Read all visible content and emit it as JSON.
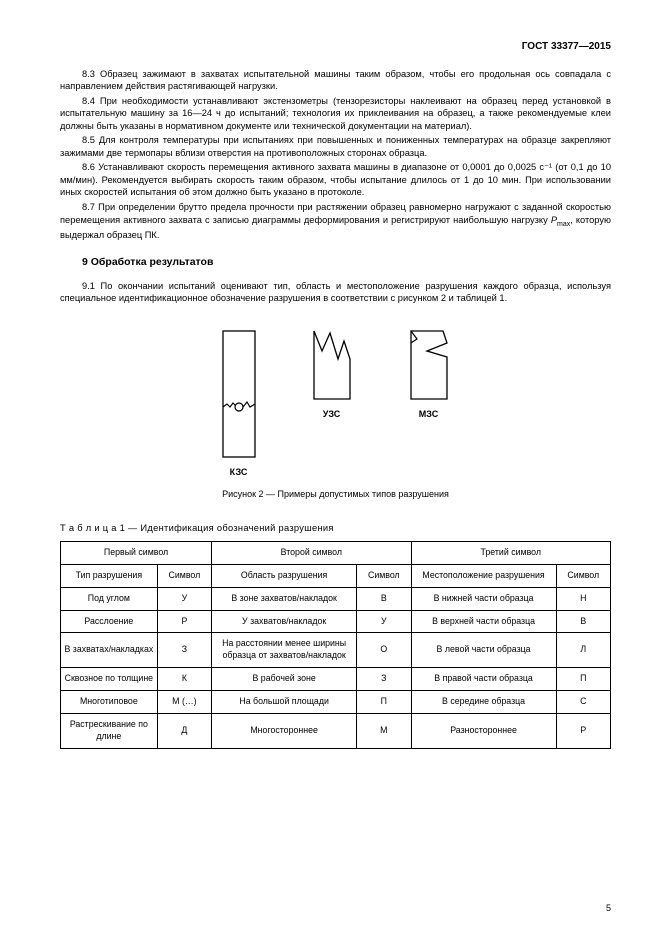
{
  "header": "ГОСТ 33377—2015",
  "paragraphs": [
    "8.3 Образец зажимают в захватах испытательной машины таким образом, чтобы его продольная ось совпадала с направлением действия растягивающей нагрузки.",
    "8.4 При необходимости устанавливают экстензометры (тензорезисторы наклеивают на образец перед установкой в испытательную машину за 16—24 ч до испытаний; технология их приклеивания на образец, а также рекомендуемые клеи должны быть указаны в нормативном документе или технической документации на материал).",
    "8.5 Для контроля температуры при испытаниях при повышенных и пониженных температурах на образце закрепляют зажимами две термопары вблизи отверстия на противоположных сторонах образца.",
    "8.6 Устанавливают скорость перемещения активного захвата машины в диапазоне от 0,0001 до 0,0025 с⁻¹ (от 0,1 до 10 мм/мин). Рекомендуется выбирать скорость таким образом, чтобы испытание длилось от 1 до 10 мин. При использовании иных скоростей испытания об этом должно быть указано в протоколе."
  ],
  "para_87_pre": "8.7 При определении брутто предела прочности при растяжении образец равномерно нагружают с заданной скоростью перемещения активного захвата с записью диаграммы деформирования и регистрируют наибольшую нагрузку ",
  "para_87_sym": "P",
  "para_87_sub": "max",
  "para_87_post": ", которую выдержал образец ПК.",
  "section9": "9  Обработка результатов",
  "para91": "9.1 По окончании испытаний оценивают тип, область и местоположение разрушения каждого образца, используя специальное идентификационное обозначение разрушения в соответствии с рисунком 2 и таблицей 1.",
  "figure": {
    "labels": [
      "КЗС",
      "УЗС",
      "МЗС"
    ],
    "caption": "Рисунок 2 — Примеры допустимых типов разрушения",
    "stroke": "#000000",
    "fill_bg": "#ffffff"
  },
  "table": {
    "caption": "Т а б л и ц а  1 — Идентификация обозначений разрушения",
    "group_headers": [
      "Первый символ",
      "Второй символ",
      "Третий символ"
    ],
    "sub_headers": [
      "Тип разрушения",
      "Символ",
      "Область разрушения",
      "Символ",
      "Местоположение разрушения",
      "Символ"
    ],
    "rows": [
      [
        "Под углом",
        "У",
        "В зоне захватов/накладок",
        "В",
        "В нижней части образца",
        "Н"
      ],
      [
        "Расслоение",
        "Р",
        "У захватов/накладок",
        "У",
        "В верхней части образца",
        "В"
      ],
      [
        "В захватах/накладках",
        "З",
        "На расстоянии менее ширины образца от захватов/накладок",
        "О",
        "В левой части образца",
        "Л"
      ],
      [
        "Сквозное по толщине",
        "К",
        "В рабочей зоне",
        "З",
        "В правой части образца",
        "П"
      ],
      [
        "Многотиповое",
        "М (…)",
        "На большой площади",
        "П",
        "В середине образца",
        "С"
      ],
      [
        "Растрескивание по длине",
        "Д",
        "Многостороннее",
        "М",
        "Разностороннее",
        "Р"
      ]
    ]
  },
  "page_number": "5"
}
